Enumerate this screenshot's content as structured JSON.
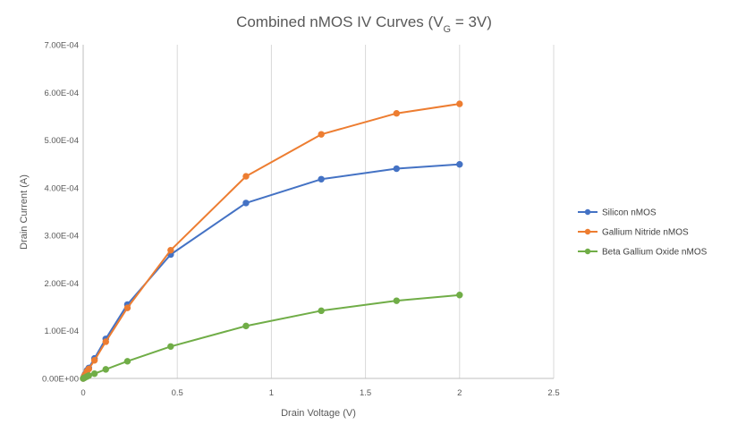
{
  "chart_data": {
    "type": "scatter",
    "title": "Combined nMOS IV Curves (V",
    "title_subscript": "G",
    "title_suffix": " = 3V)",
    "xlabel": "Drain Voltage (V)",
    "ylabel": "Drain Current (A)",
    "xlim": [
      0,
      2.5
    ],
    "ylim": [
      0,
      0.0007
    ],
    "x_ticks": [
      0,
      0.5,
      1,
      1.5,
      2,
      2.5
    ],
    "x_tick_labels": [
      "0",
      "0.5",
      "1",
      "1.5",
      "2",
      "2.5"
    ],
    "y_ticks": [
      0,
      0.0001,
      0.0002,
      0.0003,
      0.0004,
      0.0005,
      0.0006,
      0.0007
    ],
    "y_tick_labels": [
      "0.00E+00",
      "1.00E-04",
      "2.00E-04",
      "3.00E-04",
      "4.00E-04",
      "5.00E-04",
      "6.00E-04",
      "7.00E-04"
    ],
    "grid": "vertical",
    "legend_position": "right",
    "series": [
      {
        "name": "Silicon nMOS",
        "color": "#4472C4",
        "x": [
          0,
          0.005,
          0.01,
          0.02,
          0.03,
          0.06,
          0.12,
          0.235,
          0.465,
          0.865,
          1.265,
          1.665,
          2.0
        ],
        "y": [
          0,
          5e-06,
          9e-06,
          1.7e-05,
          2.2e-05,
          4.2e-05,
          8.3e-05,
          0.000155,
          0.00026,
          0.000368,
          0.000418,
          0.00044,
          0.000449
        ]
      },
      {
        "name": "Gallium Nitride nMOS",
        "color": "#ED7D31",
        "x": [
          0,
          0.005,
          0.01,
          0.02,
          0.03,
          0.06,
          0.12,
          0.235,
          0.465,
          0.865,
          1.265,
          1.665,
          2.0
        ],
        "y": [
          0,
          4e-06,
          8e-06,
          1.5e-05,
          2e-05,
          3.8e-05,
          7.7e-05,
          0.000148,
          0.000269,
          0.000424,
          0.000512,
          0.000556,
          0.000576
        ]
      },
      {
        "name": "Beta Gallium Oxide nMOS",
        "color": "#70AD47",
        "x": [
          0,
          0.005,
          0.01,
          0.02,
          0.03,
          0.06,
          0.12,
          0.235,
          0.465,
          0.865,
          1.265,
          1.665,
          2.0
        ],
        "y": [
          0,
          1e-06,
          2e-06,
          4e-06,
          6e-06,
          1e-05,
          1.9e-05,
          3.6e-05,
          6.7e-05,
          0.00011,
          0.000142,
          0.000163,
          0.000175
        ]
      }
    ]
  }
}
